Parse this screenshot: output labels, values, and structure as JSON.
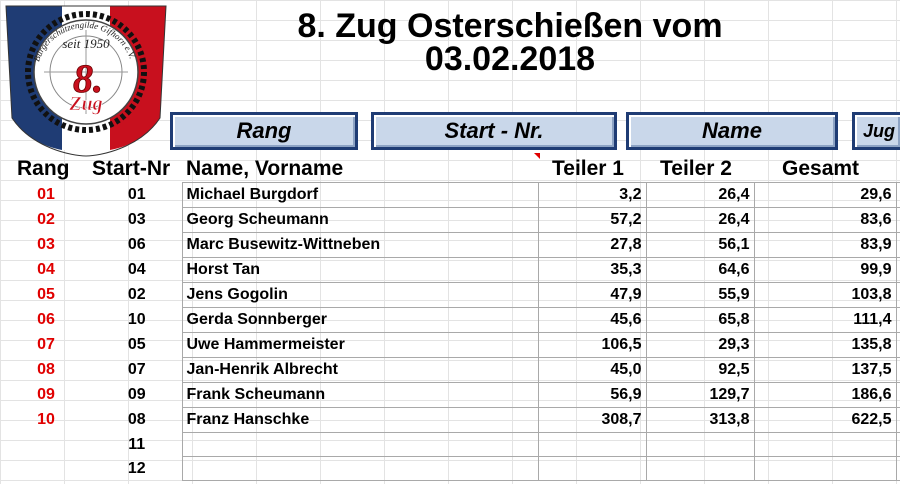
{
  "logo": {
    "ring_text": "Bürgerschützengilde Gifhorn e.V.",
    "since_text": "seit 1950",
    "number_text": "8.",
    "zug_text": "Zug"
  },
  "title": {
    "line1": "8. Zug Osterschießen vom",
    "line2": "03.02.2018"
  },
  "sort_buttons": {
    "rang": "Rang",
    "start_nr": "Start - Nr.",
    "name": "Name",
    "jugend_partial": "Jug"
  },
  "columns": {
    "rang": "Rang",
    "start_nr": "Start-Nr",
    "name": "Name, Vorname",
    "teiler1": "Teiler 1",
    "teiler2": "Teiler 2",
    "gesamt": "Gesamt"
  },
  "rows": [
    {
      "rang": "01",
      "start": "01",
      "name": "Michael Burgdorf",
      "t1": "3,2",
      "t2": "26,4",
      "gesamt": "29,6"
    },
    {
      "rang": "02",
      "start": "03",
      "name": "Georg Scheumann",
      "t1": "57,2",
      "t2": "26,4",
      "gesamt": "83,6"
    },
    {
      "rang": "03",
      "start": "06",
      "name": "Marc Busewitz-Wittneben",
      "t1": "27,8",
      "t2": "56,1",
      "gesamt": "83,9"
    },
    {
      "rang": "04",
      "start": "04",
      "name": "Horst Tan",
      "t1": "35,3",
      "t2": "64,6",
      "gesamt": "99,9"
    },
    {
      "rang": "05",
      "start": "02",
      "name": "Jens Gogolin",
      "t1": "47,9",
      "t2": "55,9",
      "gesamt": "103,8"
    },
    {
      "rang": "06",
      "start": "10",
      "name": "Gerda Sonnberger",
      "t1": "45,6",
      "t2": "65,8",
      "gesamt": "111,4"
    },
    {
      "rang": "07",
      "start": "05",
      "name": "Uwe Hammermeister",
      "t1": "106,5",
      "t2": "29,3",
      "gesamt": "135,8"
    },
    {
      "rang": "08",
      "start": "07",
      "name": "Jan-Henrik Albrecht",
      "t1": "45,0",
      "t2": "92,5",
      "gesamt": "137,5"
    },
    {
      "rang": "09",
      "start": "09",
      "name": "Frank Scheumann",
      "t1": "56,9",
      "t2": "129,7",
      "gesamt": "186,6"
    },
    {
      "rang": "10",
      "start": "08",
      "name": "Franz Hanschke",
      "t1": "308,7",
      "t2": "313,8",
      "gesamt": "622,5"
    },
    {
      "rang": "",
      "start": "11",
      "name": "",
      "t1": "",
      "t2": "",
      "gesamt": ""
    },
    {
      "rang": "",
      "start": "12",
      "name": "",
      "t1": "",
      "t2": "",
      "gesamt": ""
    }
  ],
  "colors": {
    "rank_red": "#e00000",
    "button_fill": "#c9d7ea",
    "button_border": "#1f3c74",
    "logo_blue": "#1f3c74",
    "logo_red": "#c8101e"
  }
}
